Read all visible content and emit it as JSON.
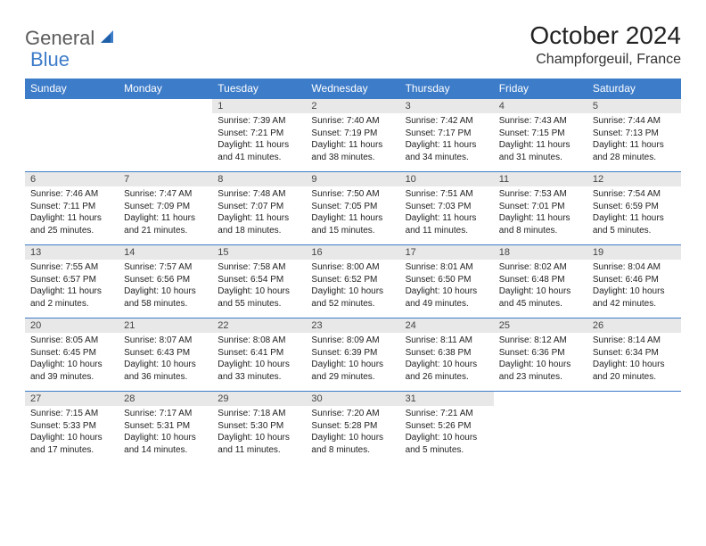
{
  "brand": {
    "word1": "General",
    "word2": "Blue"
  },
  "title": "October 2024",
  "location": "Champforgeuil, France",
  "colors": {
    "header_bg": "#3d7cc9",
    "header_text": "#ffffff",
    "daynum_bg": "#e8e8e8",
    "border": "#3d7cc9",
    "logo_gray": "#5b5b5b",
    "logo_blue": "#3d7cc9",
    "page_bg": "#ffffff"
  },
  "day_names": [
    "Sunday",
    "Monday",
    "Tuesday",
    "Wednesday",
    "Thursday",
    "Friday",
    "Saturday"
  ],
  "weeks": [
    [
      null,
      null,
      {
        "n": "1",
        "sr": "7:39 AM",
        "ss": "7:21 PM",
        "dl": "11 hours and 41 minutes."
      },
      {
        "n": "2",
        "sr": "7:40 AM",
        "ss": "7:19 PM",
        "dl": "11 hours and 38 minutes."
      },
      {
        "n": "3",
        "sr": "7:42 AM",
        "ss": "7:17 PM",
        "dl": "11 hours and 34 minutes."
      },
      {
        "n": "4",
        "sr": "7:43 AM",
        "ss": "7:15 PM",
        "dl": "11 hours and 31 minutes."
      },
      {
        "n": "5",
        "sr": "7:44 AM",
        "ss": "7:13 PM",
        "dl": "11 hours and 28 minutes."
      }
    ],
    [
      {
        "n": "6",
        "sr": "7:46 AM",
        "ss": "7:11 PM",
        "dl": "11 hours and 25 minutes."
      },
      {
        "n": "7",
        "sr": "7:47 AM",
        "ss": "7:09 PM",
        "dl": "11 hours and 21 minutes."
      },
      {
        "n": "8",
        "sr": "7:48 AM",
        "ss": "7:07 PM",
        "dl": "11 hours and 18 minutes."
      },
      {
        "n": "9",
        "sr": "7:50 AM",
        "ss": "7:05 PM",
        "dl": "11 hours and 15 minutes."
      },
      {
        "n": "10",
        "sr": "7:51 AM",
        "ss": "7:03 PM",
        "dl": "11 hours and 11 minutes."
      },
      {
        "n": "11",
        "sr": "7:53 AM",
        "ss": "7:01 PM",
        "dl": "11 hours and 8 minutes."
      },
      {
        "n": "12",
        "sr": "7:54 AM",
        "ss": "6:59 PM",
        "dl": "11 hours and 5 minutes."
      }
    ],
    [
      {
        "n": "13",
        "sr": "7:55 AM",
        "ss": "6:57 PM",
        "dl": "11 hours and 2 minutes."
      },
      {
        "n": "14",
        "sr": "7:57 AM",
        "ss": "6:56 PM",
        "dl": "10 hours and 58 minutes."
      },
      {
        "n": "15",
        "sr": "7:58 AM",
        "ss": "6:54 PM",
        "dl": "10 hours and 55 minutes."
      },
      {
        "n": "16",
        "sr": "8:00 AM",
        "ss": "6:52 PM",
        "dl": "10 hours and 52 minutes."
      },
      {
        "n": "17",
        "sr": "8:01 AM",
        "ss": "6:50 PM",
        "dl": "10 hours and 49 minutes."
      },
      {
        "n": "18",
        "sr": "8:02 AM",
        "ss": "6:48 PM",
        "dl": "10 hours and 45 minutes."
      },
      {
        "n": "19",
        "sr": "8:04 AM",
        "ss": "6:46 PM",
        "dl": "10 hours and 42 minutes."
      }
    ],
    [
      {
        "n": "20",
        "sr": "8:05 AM",
        "ss": "6:45 PM",
        "dl": "10 hours and 39 minutes."
      },
      {
        "n": "21",
        "sr": "8:07 AM",
        "ss": "6:43 PM",
        "dl": "10 hours and 36 minutes."
      },
      {
        "n": "22",
        "sr": "8:08 AM",
        "ss": "6:41 PM",
        "dl": "10 hours and 33 minutes."
      },
      {
        "n": "23",
        "sr": "8:09 AM",
        "ss": "6:39 PM",
        "dl": "10 hours and 29 minutes."
      },
      {
        "n": "24",
        "sr": "8:11 AM",
        "ss": "6:38 PM",
        "dl": "10 hours and 26 minutes."
      },
      {
        "n": "25",
        "sr": "8:12 AM",
        "ss": "6:36 PM",
        "dl": "10 hours and 23 minutes."
      },
      {
        "n": "26",
        "sr": "8:14 AM",
        "ss": "6:34 PM",
        "dl": "10 hours and 20 minutes."
      }
    ],
    [
      {
        "n": "27",
        "sr": "7:15 AM",
        "ss": "5:33 PM",
        "dl": "10 hours and 17 minutes."
      },
      {
        "n": "28",
        "sr": "7:17 AM",
        "ss": "5:31 PM",
        "dl": "10 hours and 14 minutes."
      },
      {
        "n": "29",
        "sr": "7:18 AM",
        "ss": "5:30 PM",
        "dl": "10 hours and 11 minutes."
      },
      {
        "n": "30",
        "sr": "7:20 AM",
        "ss": "5:28 PM",
        "dl": "10 hours and 8 minutes."
      },
      {
        "n": "31",
        "sr": "7:21 AM",
        "ss": "5:26 PM",
        "dl": "10 hours and 5 minutes."
      },
      null,
      null
    ]
  ],
  "labels": {
    "sunrise": "Sunrise:",
    "sunset": "Sunset:",
    "daylight": "Daylight:"
  }
}
